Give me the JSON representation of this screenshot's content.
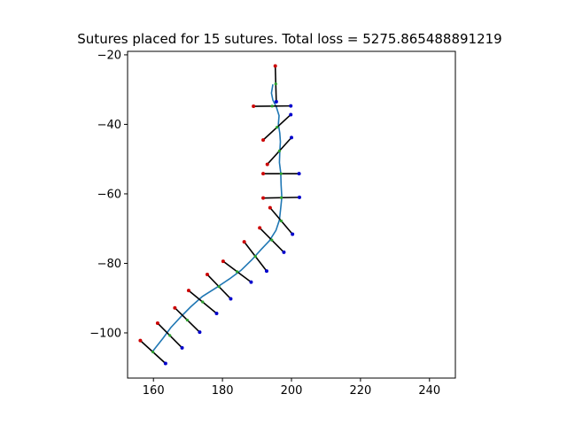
{
  "chart_data": {
    "type": "scatter",
    "title": "Sutures placed for 15 sutures. Total loss = 5275.865488891219",
    "xlabel": "",
    "ylabel": "",
    "xlim": [
      152.5,
      247.5
    ],
    "ylim": [
      -113,
      -19
    ],
    "xticks": [
      "160",
      "180",
      "200",
      "220",
      "240"
    ],
    "yticks": [
      "-20",
      "-40",
      "-60",
      "-80",
      "-100"
    ],
    "grid": false,
    "colors": {
      "wound_line": "#1f77b4",
      "suture": "#000000",
      "insertion_point": "#cc0000",
      "extraction_point": "#0000cc",
      "center_point": "#2ca02c"
    },
    "wound_path": [
      [
        194.6,
        -28.5
      ],
      [
        194.2,
        -31.0
      ],
      [
        194.6,
        -33.0
      ],
      [
        195.6,
        -35.0
      ],
      [
        196.4,
        -37.5
      ],
      [
        196.2,
        -40.0
      ],
      [
        196.6,
        -42.5
      ],
      [
        196.8,
        -45.0
      ],
      [
        196.6,
        -48.0
      ],
      [
        196.5,
        -51.0
      ],
      [
        196.9,
        -54.0
      ],
      [
        197.0,
        -57.5
      ],
      [
        197.2,
        -61.0
      ],
      [
        196.9,
        -64.0
      ],
      [
        196.5,
        -67.5
      ],
      [
        195.5,
        -70.5
      ],
      [
        193.6,
        -73.5
      ],
      [
        191.2,
        -76.0
      ],
      [
        188.5,
        -79.0
      ],
      [
        185.4,
        -82.0
      ],
      [
        182.0,
        -84.5
      ],
      [
        178.2,
        -87.0
      ],
      [
        174.2,
        -89.5
      ],
      [
        170.8,
        -92.5
      ],
      [
        167.8,
        -95.5
      ],
      [
        165.0,
        -98.5
      ],
      [
        162.8,
        -101.5
      ],
      [
        160.8,
        -104.0
      ],
      [
        159.6,
        -105.5
      ]
    ],
    "sutures": [
      {
        "insertion": [
          195.3,
          -23.2
        ],
        "extraction": [
          195.6,
          -33.5
        ]
      },
      {
        "insertion": [
          189.0,
          -34.8
        ],
        "extraction": [
          199.8,
          -34.7
        ]
      },
      {
        "insertion": [
          191.8,
          -44.5
        ],
        "extraction": [
          199.8,
          -37.2
        ]
      },
      {
        "insertion": [
          193.0,
          -51.5
        ],
        "extraction": [
          200.0,
          -43.8
        ]
      },
      {
        "insertion": [
          191.8,
          -54.2
        ],
        "extraction": [
          202.2,
          -54.2
        ]
      },
      {
        "insertion": [
          191.8,
          -61.2
        ],
        "extraction": [
          202.3,
          -61.0
        ]
      },
      {
        "insertion": [
          193.8,
          -64.0
        ],
        "extraction": [
          200.3,
          -71.6
        ]
      },
      {
        "insertion": [
          190.8,
          -69.8
        ],
        "extraction": [
          197.8,
          -76.8
        ]
      },
      {
        "insertion": [
          186.3,
          -73.8
        ],
        "extraction": [
          192.8,
          -82.2
        ]
      },
      {
        "insertion": [
          180.2,
          -79.4
        ],
        "extraction": [
          188.3,
          -85.4
        ]
      },
      {
        "insertion": [
          175.6,
          -83.2
        ],
        "extraction": [
          182.4,
          -90.2
        ]
      },
      {
        "insertion": [
          170.2,
          -87.8
        ],
        "extraction": [
          178.3,
          -94.4
        ]
      },
      {
        "insertion": [
          166.2,
          -92.8
        ],
        "extraction": [
          173.4,
          -99.8
        ]
      },
      {
        "insertion": [
          161.2,
          -97.2
        ],
        "extraction": [
          168.3,
          -104.3
        ]
      },
      {
        "insertion": [
          156.2,
          -102.2
        ],
        "extraction": [
          163.5,
          -108.8
        ]
      }
    ]
  }
}
